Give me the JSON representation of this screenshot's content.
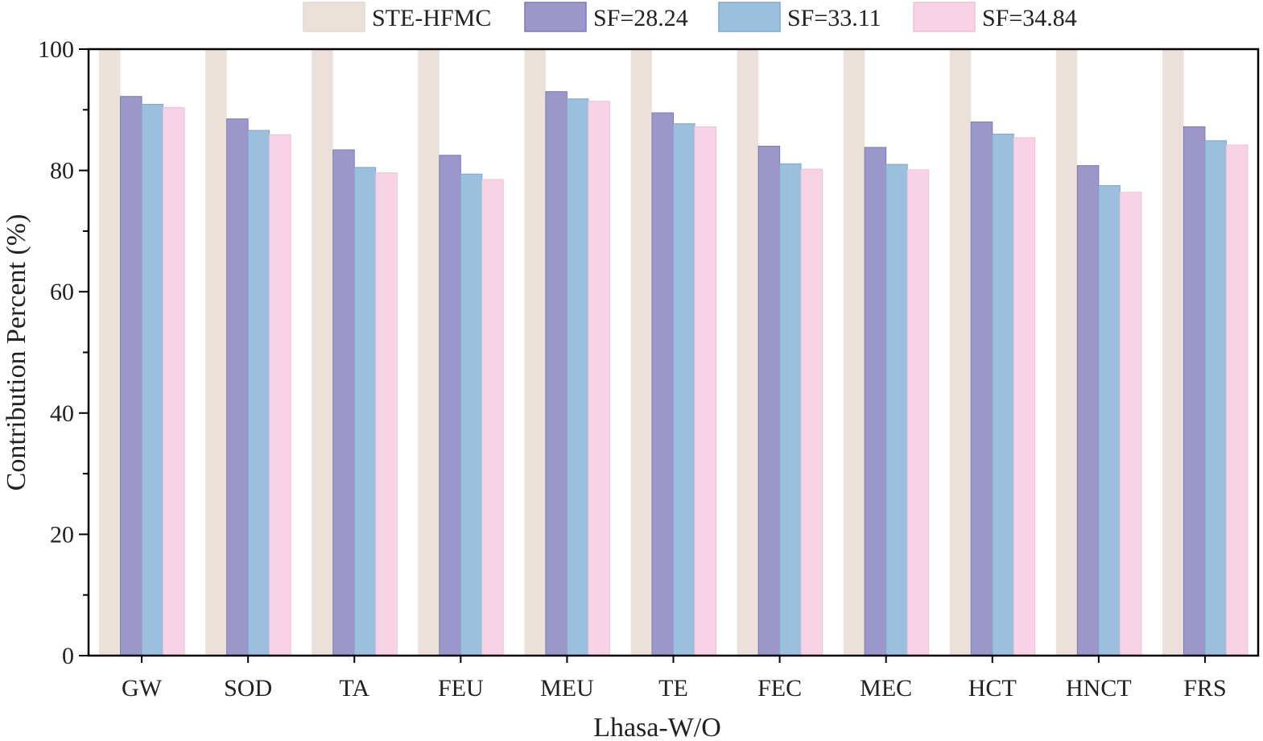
{
  "chart_data": {
    "type": "bar",
    "title": "",
    "xlabel": "Lhasa-W/O",
    "ylabel": "Contribution Percent (%)",
    "ylim": [
      0,
      100
    ],
    "yticks": [
      0,
      20,
      40,
      60,
      80,
      100
    ],
    "legend_position": "top",
    "categories": [
      "GW",
      "SOD",
      "TA",
      "FEU",
      "MEU",
      "TE",
      "FEC",
      "MEC",
      "HCT",
      "HNCT",
      "FRS"
    ],
    "series": [
      {
        "name": "STE-HFMC",
        "color": "#ebe0da",
        "values": [
          100,
          100,
          100,
          100,
          100,
          100,
          100,
          100,
          100,
          100,
          100
        ]
      },
      {
        "name": "SF=28.24",
        "color": "#9b97cb",
        "values": [
          92.2,
          88.5,
          83.4,
          82.5,
          93.0,
          89.5,
          84.0,
          83.8,
          88.0,
          80.8,
          87.2
        ]
      },
      {
        "name": "SF=33.11",
        "color": "#9bbfdd",
        "values": [
          90.9,
          86.6,
          80.5,
          79.4,
          91.8,
          87.7,
          81.1,
          81.0,
          86.0,
          77.5,
          84.9
        ]
      },
      {
        "name": "SF=34.84",
        "color": "#f8d3e5",
        "values": [
          90.4,
          85.9,
          79.6,
          78.5,
          91.4,
          87.2,
          80.2,
          80.1,
          85.4,
          76.4,
          84.2
        ]
      }
    ]
  }
}
